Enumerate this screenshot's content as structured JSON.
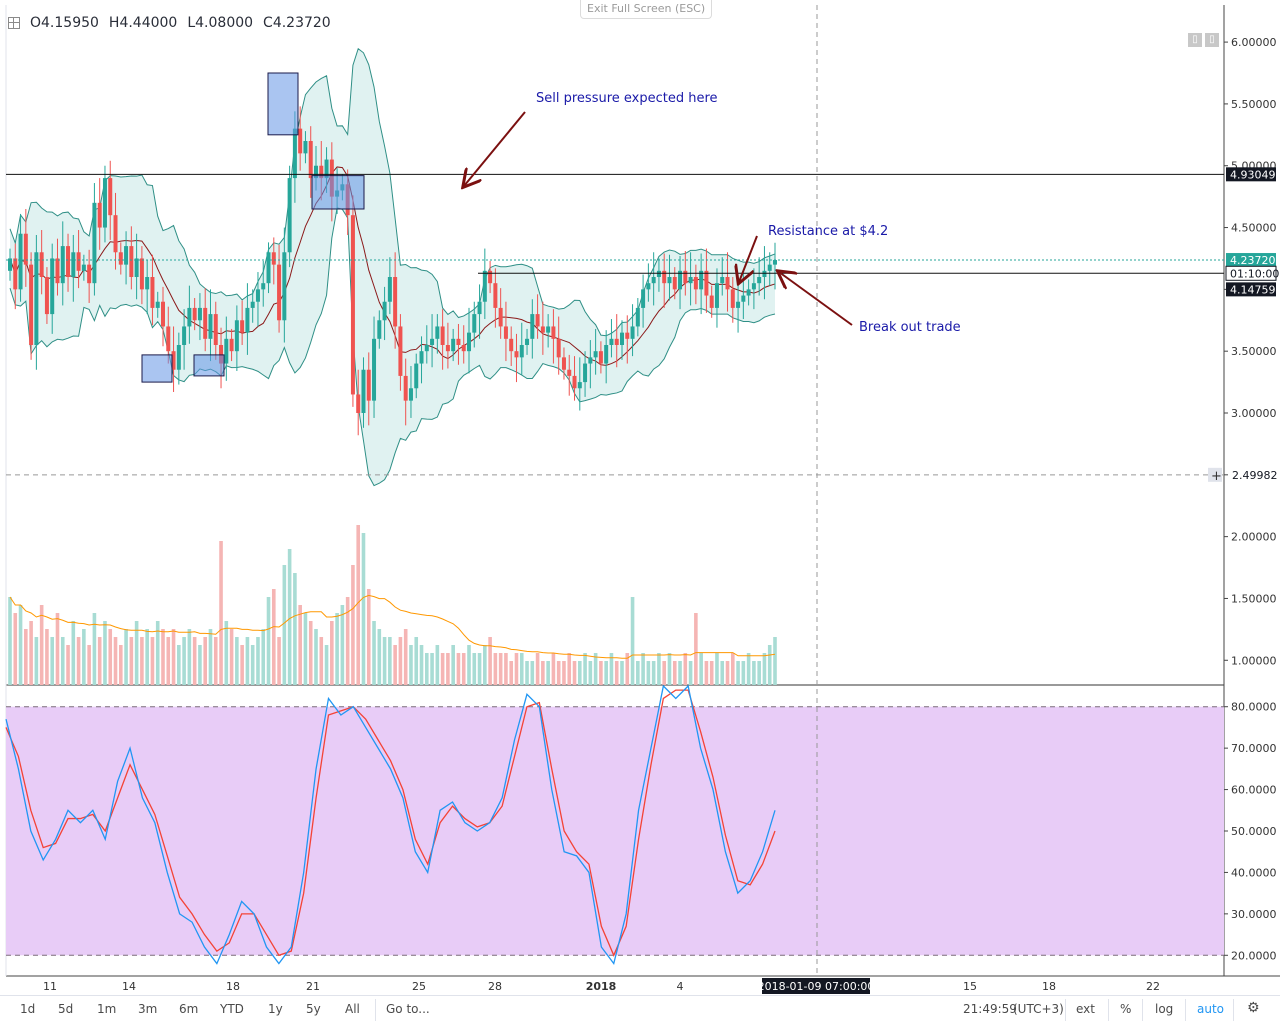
{
  "ohlc": {
    "open": "O4.15950",
    "high": "H4.44000",
    "low": "L4.08000",
    "close": "C4.23720"
  },
  "exit_full_screen": "Exit Full Screen (ESC)",
  "price_axis": {
    "ticks": [
      "6.00000",
      "5.50000",
      "5.00000",
      "4.50000",
      "4.00000",
      "3.50000",
      "3.00000",
      "2.50000",
      "2.00000",
      "1.50000",
      "1.00000"
    ],
    "tick_values": [
      6.0,
      5.5,
      5.0,
      4.5,
      4.0,
      3.5,
      3.0,
      2.5,
      2.0,
      1.5,
      1.0
    ],
    "labels": [
      {
        "text": "4.93049",
        "value": 4.93049,
        "style": "dark"
      },
      {
        "text": "4.23720",
        "value": 4.2372,
        "style": "green"
      },
      {
        "text": "01:10:00",
        "value": 4.13,
        "style": "white"
      },
      {
        "text": "4.14759",
        "value": 4.0,
        "style": "dark"
      },
      {
        "text": "2.49982",
        "value": 2.49982,
        "style": "cross"
      }
    ]
  },
  "stoch_axis": {
    "ticks": [
      "80.0000",
      "70.0000",
      "60.0000",
      "50.0000",
      "40.0000",
      "30.0000",
      "20.0000"
    ],
    "tick_values": [
      80,
      70,
      60,
      50,
      40,
      30,
      20
    ]
  },
  "time_axis": {
    "ticks": [
      {
        "label": "11",
        "bold": false
      },
      {
        "label": "14",
        "bold": false
      },
      {
        "label": "18",
        "bold": false
      },
      {
        "label": "21",
        "bold": false
      },
      {
        "label": "25",
        "bold": false
      },
      {
        "label": "28",
        "bold": false
      },
      {
        "label": "2018",
        "bold": true
      },
      {
        "label": "4",
        "bold": false
      },
      {
        "label": "15",
        "bold": false
      },
      {
        "label": "18",
        "bold": false
      },
      {
        "label": "22",
        "bold": false
      }
    ],
    "cursor_label": "2018-01-09 07:00:00"
  },
  "annotations": {
    "sell": "Sell pressure expected here",
    "resistance": "Resistance at $4.2",
    "breakout": "Break out trade"
  },
  "toolbar": {
    "ranges": [
      "1d",
      "5d",
      "1m",
      "3m",
      "6m",
      "YTD",
      "1y",
      "5y",
      "All"
    ],
    "goto": "Go to...",
    "clock": "21:49:59",
    "tz": "(UTC+3)",
    "ext": "ext",
    "pct": "%",
    "log": "log",
    "auto": "auto",
    "settings_icon": "gear-icon"
  },
  "colors": {
    "up": "#26a69a",
    "down": "#ef5350",
    "bb_fill": "#e0f2f1",
    "bb_line": "#2f8f86",
    "ma": "#8b1a1a",
    "stoch_bg": "#e8ccf7",
    "stoch_k": "#2196f3",
    "stoch_d": "#f44336",
    "vol_ma": "#ff9800",
    "annotation": "#1a1aa8",
    "arrow": "#7b1010"
  },
  "chart_data": {
    "type": "candlestick",
    "price_range": [
      0.8,
      6.3
    ],
    "stoch_range": [
      15,
      85
    ],
    "stoch_levels": [
      80,
      20
    ],
    "horizontal_lines": [
      4.93049,
      4.13,
      2.49982
    ],
    "closes": [
      4.25,
      4.0,
      4.45,
      4.2,
      3.55,
      4.3,
      4.1,
      3.8,
      4.25,
      4.05,
      4.35,
      4.1,
      4.3,
      4.15,
      4.2,
      4.05,
      4.7,
      4.5,
      4.9,
      4.6,
      4.3,
      4.2,
      4.35,
      4.1,
      4.25,
      4.0,
      4.1,
      3.85,
      3.9,
      3.7,
      3.5,
      3.35,
      3.55,
      3.7,
      3.85,
      3.75,
      3.85,
      3.6,
      3.8,
      3.55,
      3.4,
      3.6,
      3.5,
      3.75,
      3.65,
      3.85,
      3.9,
      4.0,
      4.05,
      4.3,
      4.2,
      3.75,
      4.3,
      4.9,
      5.3,
      5.1,
      5.2,
      4.9,
      5.0,
      4.9,
      5.05,
      4.75,
      4.8,
      4.85,
      4.6,
      3.15,
      3.0,
      3.35,
      3.1,
      3.6,
      3.75,
      3.9,
      4.1,
      3.7,
      3.3,
      3.1,
      3.2,
      3.4,
      3.5,
      3.55,
      3.6,
      3.7,
      3.55,
      3.5,
      3.6,
      3.55,
      3.5,
      3.65,
      3.8,
      3.9,
      4.15,
      4.05,
      3.85,
      3.7,
      3.6,
      3.5,
      3.45,
      3.55,
      3.6,
      3.8,
      3.7,
      3.65,
      3.7,
      3.6,
      3.45,
      3.35,
      3.3,
      3.2,
      3.25,
      3.4,
      3.45,
      3.5,
      3.4,
      3.55,
      3.6,
      3.55,
      3.65,
      3.6,
      3.7,
      3.85,
      4.0,
      4.05,
      4.1,
      4.15,
      4.05,
      4.1,
      4.0,
      4.15,
      4.05,
      4.1,
      4.0,
      4.15,
      3.95,
      3.85,
      4.05,
      4.1,
      4.0,
      3.85,
      3.9,
      3.95,
      4.0,
      4.05,
      4.1,
      4.15,
      4.2,
      4.2372
    ],
    "volume_relative": [
      0.55,
      0.45,
      0.5,
      0.35,
      0.4,
      0.3,
      0.5,
      0.35,
      0.3,
      0.45,
      0.3,
      0.25,
      0.4,
      0.3,
      0.35,
      0.25,
      0.45,
      0.3,
      0.4,
      0.35,
      0.3,
      0.25,
      0.35,
      0.3,
      0.4,
      0.3,
      0.35,
      0.3,
      0.4,
      0.35,
      0.3,
      0.35,
      0.25,
      0.3,
      0.35,
      0.3,
      0.25,
      0.3,
      0.35,
      0.3,
      0.9,
      0.4,
      0.35,
      0.3,
      0.25,
      0.3,
      0.25,
      0.3,
      0.35,
      0.55,
      0.6,
      0.3,
      0.75,
      0.85,
      0.7,
      0.5,
      0.45,
      0.4,
      0.35,
      0.3,
      0.25,
      0.4,
      0.45,
      0.5,
      0.55,
      0.75,
      1.0,
      0.95,
      0.6,
      0.4,
      0.35,
      0.3,
      0.3,
      0.25,
      0.3,
      0.35,
      0.25,
      0.3,
      0.25,
      0.2,
      0.2,
      0.25,
      0.2,
      0.2,
      0.25,
      0.2,
      0.2,
      0.25,
      0.2,
      0.2,
      0.25,
      0.3,
      0.2,
      0.2,
      0.2,
      0.15,
      0.2,
      0.2,
      0.15,
      0.15,
      0.2,
      0.15,
      0.15,
      0.2,
      0.15,
      0.15,
      0.2,
      0.15,
      0.15,
      0.2,
      0.15,
      0.2,
      0.15,
      0.15,
      0.2,
      0.15,
      0.15,
      0.2,
      0.55,
      0.15,
      0.2,
      0.15,
      0.15,
      0.2,
      0.15,
      0.2,
      0.15,
      0.15,
      0.2,
      0.15,
      0.45,
      0.2,
      0.15,
      0.15,
      0.2,
      0.15,
      0.15,
      0.2,
      0.15,
      0.15,
      0.2,
      0.15,
      0.15,
      0.2,
      0.25,
      0.3
    ],
    "stoch_k": [
      77,
      65,
      50,
      43,
      48,
      55,
      52,
      55,
      48,
      62,
      70,
      58,
      52,
      40,
      30,
      28,
      22,
      18,
      25,
      33,
      30,
      22,
      18,
      22,
      40,
      65,
      82,
      78,
      80,
      75,
      70,
      65,
      58,
      45,
      40,
      55,
      57,
      52,
      50,
      52,
      58,
      72,
      83,
      80,
      60,
      45,
      44,
      40,
      22,
      18,
      30,
      55,
      70,
      85,
      82,
      85,
      70,
      60,
      45,
      35,
      38,
      45,
      55
    ],
    "stoch_d": [
      75,
      68,
      55,
      46,
      47,
      53,
      53,
      54,
      50,
      58,
      66,
      60,
      54,
      44,
      34,
      30,
      25,
      21,
      23,
      30,
      30,
      25,
      20,
      21,
      35,
      58,
      78,
      79,
      80,
      77,
      72,
      67,
      60,
      48,
      42,
      52,
      56,
      53,
      51,
      52,
      56,
      68,
      80,
      81,
      65,
      50,
      45,
      42,
      27,
      20,
      27,
      48,
      66,
      82,
      84,
      84,
      74,
      63,
      49,
      38,
      37,
      42,
      50
    ]
  }
}
